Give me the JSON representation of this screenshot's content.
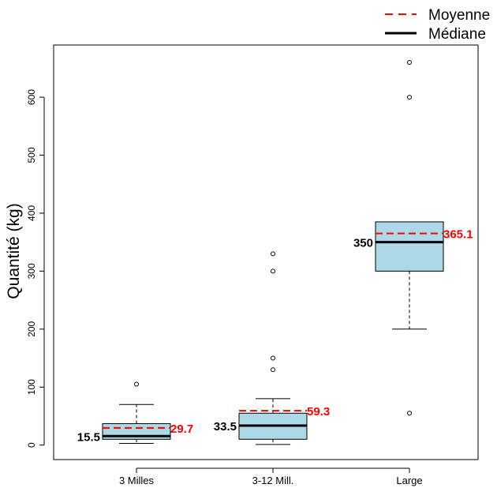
{
  "chart_data": {
    "type": "boxplot",
    "ylabel": "Quantité (kg)",
    "xlabel": "",
    "ylim": [
      -25,
      690
    ],
    "yticks": [
      0,
      100,
      200,
      300,
      400,
      500,
      600
    ],
    "categories": [
      "3 Milles",
      "3-12 Mill.",
      "Large"
    ],
    "boxes": [
      {
        "category": "3 Milles",
        "whisker_low": 3,
        "q1": 10,
        "median": 15.5,
        "q3": 37,
        "whisker_high": 70,
        "mean": 29.7,
        "outliers": [
          105
        ],
        "median_label": "15.5",
        "mean_label": "29.7"
      },
      {
        "category": "3-12 Mill.",
        "whisker_low": 1,
        "q1": 10,
        "median": 33.5,
        "q3": 55,
        "whisker_high": 80,
        "mean": 59.3,
        "outliers": [
          130,
          150,
          300,
          330
        ],
        "median_label": "33.5",
        "mean_label": "59.3"
      },
      {
        "category": "Large",
        "whisker_low": 200,
        "q1": 300,
        "median": 350,
        "q3": 385,
        "whisker_high": 385,
        "mean": 365.1,
        "outliers": [
          55,
          600,
          660
        ],
        "median_label": "350",
        "mean_label": "365.1"
      }
    ],
    "legend": {
      "position": "top-right",
      "entries": [
        {
          "label": "Moyenne",
          "style": "dashed",
          "color": "#ff0000"
        },
        {
          "label": "Médiane",
          "style": "solid",
          "color": "#000000"
        }
      ]
    },
    "colors": {
      "box_fill": "#add8e6",
      "mean_line": "#ff0000",
      "median_line": "#000000",
      "mean_label": "#ff0000",
      "median_label": "#000000"
    },
    "grid": false
  }
}
